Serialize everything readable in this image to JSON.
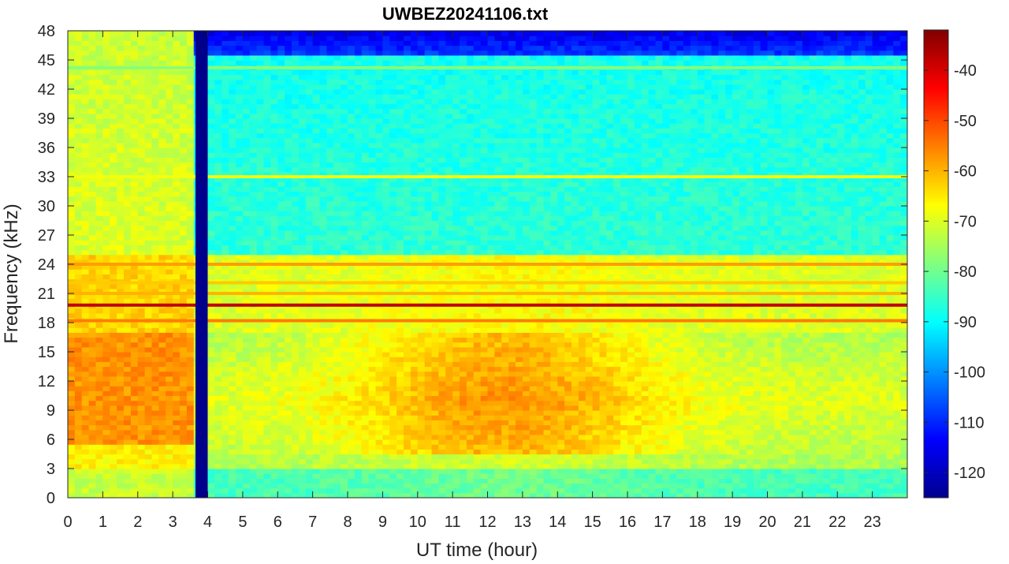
{
  "chart_data": {
    "type": "heatmap",
    "title": "UWBEZ20241106.txt",
    "xlabel": "UT time (hour)",
    "ylabel": "Frequency (kHz)",
    "xlim": [
      0,
      24
    ],
    "ylim": [
      0,
      48
    ],
    "x_ticks": [
      "0",
      "1",
      "2",
      "3",
      "4",
      "5",
      "6",
      "7",
      "8",
      "9",
      "10",
      "11",
      "12",
      "13",
      "14",
      "15",
      "16",
      "17",
      "18",
      "19",
      "20",
      "21",
      "22",
      "23"
    ],
    "y_ticks": [
      "0",
      "3",
      "6",
      "9",
      "12",
      "15",
      "18",
      "21",
      "24",
      "27",
      "30",
      "33",
      "36",
      "39",
      "42",
      "45",
      "48"
    ],
    "colorbar": {
      "range": [
        -125,
        -32
      ],
      "ticks": [
        "-40",
        "-50",
        "-60",
        "-70",
        "-80",
        "-90",
        "-100",
        "-110",
        "-120"
      ],
      "colormap": "jet"
    },
    "data_gap": {
      "start_hour": 3.65,
      "end_hour": 4.0
    },
    "persistent_lines_khz": [
      {
        "freq": 19.8,
        "level": -38
      },
      {
        "freq": 18.2,
        "level": -55
      },
      {
        "freq": 24.0,
        "level": -58
      },
      {
        "freq": 22.1,
        "level": -62
      },
      {
        "freq": 21.0,
        "level": -60
      },
      {
        "freq": 33.0,
        "level": -68
      },
      {
        "freq": 44.2,
        "level": -78
      }
    ],
    "colors": {
      "low": "#00008f",
      "mid": "#80ff80",
      "high": "#800000"
    }
  }
}
